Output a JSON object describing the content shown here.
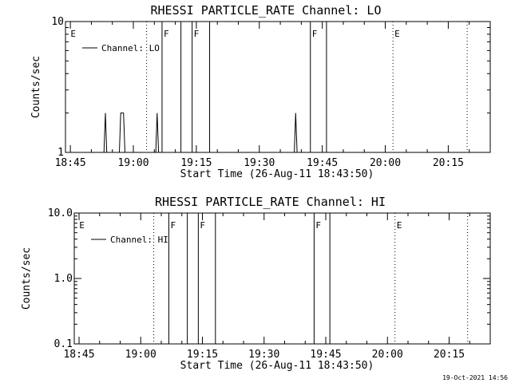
{
  "chart_data": [
    {
      "type": "line",
      "title": "RHESSI PARTICLE_RATE Channel: LO",
      "xlabel": "Start Time (26-Aug-11 18:43:50)",
      "ylabel": "Counts/sec",
      "y_scale": "log",
      "ylim": [
        1,
        10
      ],
      "y_ticks": [
        {
          "value": 1,
          "label": "1"
        },
        {
          "value": 10,
          "label": "10"
        }
      ],
      "xlim": [
        "18:43:50",
        "20:25:00"
      ],
      "x_ticks": [
        "18:45",
        "19:00",
        "19:15",
        "19:30",
        "19:45",
        "20:00",
        "20:15"
      ],
      "legend": {
        "placement": "top-left",
        "entry": "Channel: LO"
      },
      "series": [
        {
          "name": "Channel: LO",
          "points": [
            [
              "18:53:00",
              1
            ],
            [
              "18:53:20",
              2
            ],
            [
              "18:53:40",
              1
            ],
            [
              "18:56:40",
              1
            ],
            [
              "18:57:00",
              2
            ],
            [
              "18:57:40",
              2
            ],
            [
              "18:58:00",
              1
            ],
            [
              "19:05:20",
              1
            ],
            [
              "19:05:40",
              2
            ],
            [
              "19:06:00",
              1
            ],
            [
              "19:38:20",
              1
            ],
            [
              "19:38:40",
              2
            ],
            [
              "19:39:00",
              1
            ]
          ]
        }
      ],
      "markers": [
        {
          "time": "18:44:40",
          "label": "E",
          "style": "none"
        },
        {
          "time": "19:03:10",
          "label": "",
          "style": "dotted"
        },
        {
          "time": "19:06:50",
          "label": "F",
          "style": "solid"
        },
        {
          "time": "19:11:20",
          "label": "",
          "style": "solid"
        },
        {
          "time": "19:14:00",
          "label": "F",
          "style": "solid"
        },
        {
          "time": "19:18:10",
          "label": "",
          "style": "solid"
        },
        {
          "time": "19:42:10",
          "label": "F",
          "style": "solid"
        },
        {
          "time": "19:46:00",
          "label": "",
          "style": "solid"
        },
        {
          "time": "20:01:50",
          "label": "E",
          "style": "dotted"
        },
        {
          "time": "20:19:30",
          "label": "",
          "style": "dotted"
        }
      ]
    },
    {
      "type": "line",
      "title": "RHESSI PARTICLE_RATE Channel: HI",
      "xlabel": "Start Time (26-Aug-11 18:43:50)",
      "ylabel": "Counts/sec",
      "y_scale": "log",
      "ylim": [
        0.1,
        10
      ],
      "y_ticks": [
        {
          "value": 0.1,
          "label": "0.1"
        },
        {
          "value": 1,
          "label": "1.0"
        },
        {
          "value": 10,
          "label": "10.0"
        }
      ],
      "xlim": [
        "18:43:50",
        "20:25:00"
      ],
      "x_ticks": [
        "18:45",
        "19:00",
        "19:15",
        "19:30",
        "19:45",
        "20:00",
        "20:15"
      ],
      "legend": {
        "placement": "top-left",
        "entry": "Channel: HI"
      },
      "series": [
        {
          "name": "Channel: HI",
          "points": []
        }
      ],
      "markers": [
        {
          "time": "18:44:40",
          "label": "E",
          "style": "none"
        },
        {
          "time": "19:03:10",
          "label": "",
          "style": "dotted"
        },
        {
          "time": "19:06:50",
          "label": "F",
          "style": "solid"
        },
        {
          "time": "19:11:20",
          "label": "",
          "style": "solid"
        },
        {
          "time": "19:14:00",
          "label": "F",
          "style": "solid"
        },
        {
          "time": "19:18:10",
          "label": "",
          "style": "solid"
        },
        {
          "time": "19:42:10",
          "label": "F",
          "style": "solid"
        },
        {
          "time": "19:46:00",
          "label": "",
          "style": "solid"
        },
        {
          "time": "20:01:50",
          "label": "E",
          "style": "dotted"
        },
        {
          "time": "20:19:30",
          "label": "",
          "style": "dotted"
        }
      ]
    }
  ],
  "timestamp": "19-Oct-2021 14:56"
}
